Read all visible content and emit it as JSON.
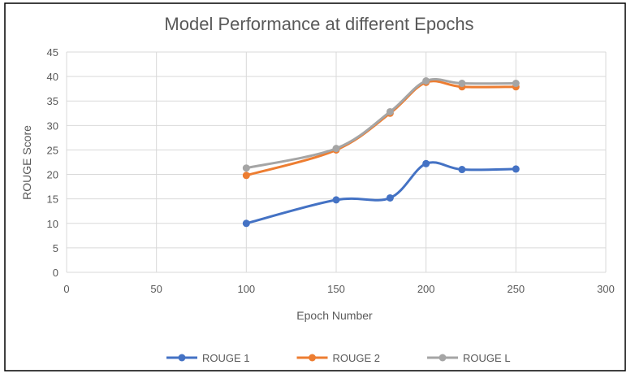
{
  "chart_data": {
    "type": "line",
    "title": "Model Performance at different Epochs",
    "xlabel": "Epoch Number",
    "ylabel": "ROUGE Score",
    "xlim": [
      0,
      300
    ],
    "ylim": [
      0,
      45
    ],
    "xticks": [
      0,
      50,
      100,
      150,
      200,
      250,
      300
    ],
    "yticks": [
      0,
      5,
      10,
      15,
      20,
      25,
      30,
      35,
      40,
      45
    ],
    "x": [
      100,
      150,
      180,
      200,
      220,
      250
    ],
    "grid": true,
    "legend_position": "bottom",
    "series": [
      {
        "name": "ROUGE 1",
        "color": "#4472C4",
        "values": [
          10.0,
          14.8,
          15.2,
          22.2,
          21.0,
          21.1
        ]
      },
      {
        "name": "ROUGE 2",
        "color": "#ED7D31",
        "values": [
          19.8,
          25.0,
          32.5,
          38.8,
          37.9,
          37.9
        ]
      },
      {
        "name": "ROUGE L",
        "color": "#A5A5A5",
        "values": [
          21.3,
          25.3,
          32.8,
          39.1,
          38.6,
          38.6
        ]
      }
    ]
  }
}
